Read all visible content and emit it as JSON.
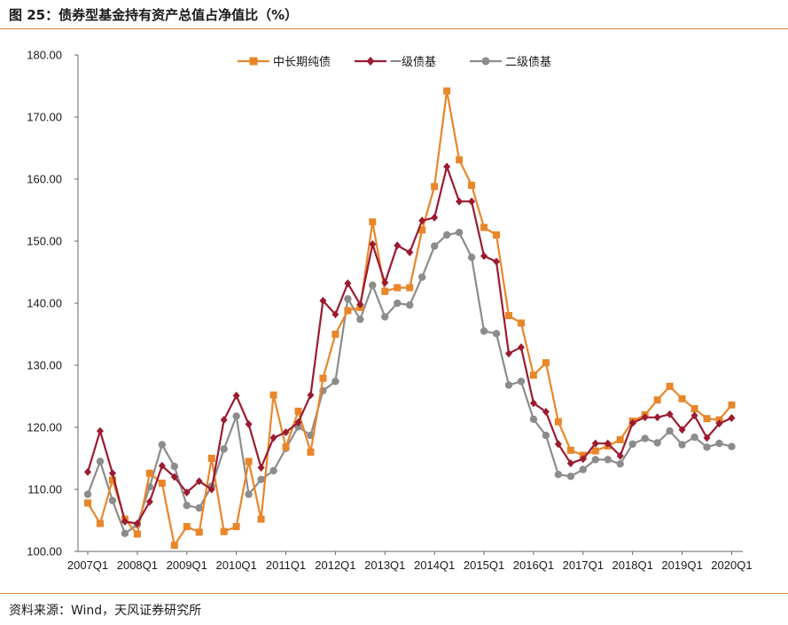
{
  "header": {
    "title": "图 25：债券型基金持有资产总值占净值比（%）"
  },
  "footer": {
    "source": "资料来源：Wind，天风证券研究所"
  },
  "chart_data": {
    "type": "line",
    "title": "图 25：债券型基金持有资产总值占净值比（%）",
    "ylim": [
      100,
      180
    ],
    "yticks": [
      "100.00",
      "110.00",
      "120.00",
      "130.00",
      "140.00",
      "150.00",
      "160.00",
      "170.00",
      "180.00"
    ],
    "xtick_labels": [
      "2007Q1",
      "2008Q1",
      "2009Q1",
      "2010Q1",
      "2011Q1",
      "2012Q1",
      "2013Q1",
      "2014Q1",
      "2015Q1",
      "2016Q1",
      "2017Q1",
      "2018Q1",
      "2019Q1",
      "2020Q1"
    ],
    "x_start": "2007Q1",
    "x_end": "2020Q1",
    "legend_position": "top",
    "series": [
      {
        "name": "中长期纯债",
        "color": "#e8862a",
        "marker": "square",
        "values": [
          107.8,
          104.5,
          111.5,
          105.2,
          102.8,
          112.6,
          111.0,
          101.0,
          104.0,
          103.1,
          115.0,
          103.2,
          104.0,
          114.5,
          105.2,
          125.2,
          116.8,
          122.6,
          116.0,
          127.9,
          135.0,
          138.8,
          139.3,
          153.1,
          141.9,
          142.5,
          142.5,
          151.8,
          158.8,
          174.2,
          163.1,
          159.0,
          152.2,
          151.0,
          138.0,
          136.8,
          128.4,
          130.4,
          120.9,
          116.3,
          115.5,
          116.2,
          117.0,
          118.0,
          121.0,
          122.0,
          124.4,
          126.6,
          124.6,
          123.0,
          121.4,
          121.2,
          123.6
        ]
      },
      {
        "name": "一级债基",
        "color": "#9b1b30",
        "marker": "diamond",
        "values": [
          112.8,
          119.4,
          112.6,
          104.8,
          104.5,
          108.0,
          113.8,
          112.0,
          109.5,
          111.3,
          110.0,
          121.2,
          125.1,
          120.5,
          113.5,
          118.3,
          119.2,
          120.8,
          125.2,
          140.4,
          138.2,
          143.2,
          139.8,
          149.5,
          143.3,
          149.3,
          148.2,
          153.3,
          153.8,
          162.0,
          156.4,
          156.4,
          147.6,
          146.7,
          131.9,
          132.9,
          123.9,
          122.5,
          117.3,
          114.2,
          114.9,
          117.4,
          117.4,
          115.4,
          120.7,
          121.6,
          121.6,
          122.1,
          119.6,
          121.9,
          118.3,
          120.6,
          121.5
        ]
      },
      {
        "name": "二级债基",
        "color": "#8c8c8c",
        "marker": "circle",
        "values": [
          109.2,
          114.5,
          108.2,
          102.9,
          104.3,
          110.4,
          117.2,
          113.7,
          107.4,
          107.0,
          110.5,
          116.5,
          121.8,
          109.2,
          111.6,
          113.0,
          116.6,
          120.1,
          118.7,
          125.9,
          127.4,
          140.7,
          137.4,
          142.9,
          137.8,
          140.0,
          139.7,
          144.2,
          149.2,
          151.0,
          151.4,
          147.4,
          135.5,
          135.1,
          126.8,
          127.4,
          121.3,
          118.7,
          112.4,
          112.1,
          113.2,
          114.8,
          114.8,
          114.1,
          117.3,
          118.2,
          117.5,
          119.4,
          117.2,
          118.4,
          116.8,
          117.4,
          116.9
        ]
      }
    ]
  }
}
